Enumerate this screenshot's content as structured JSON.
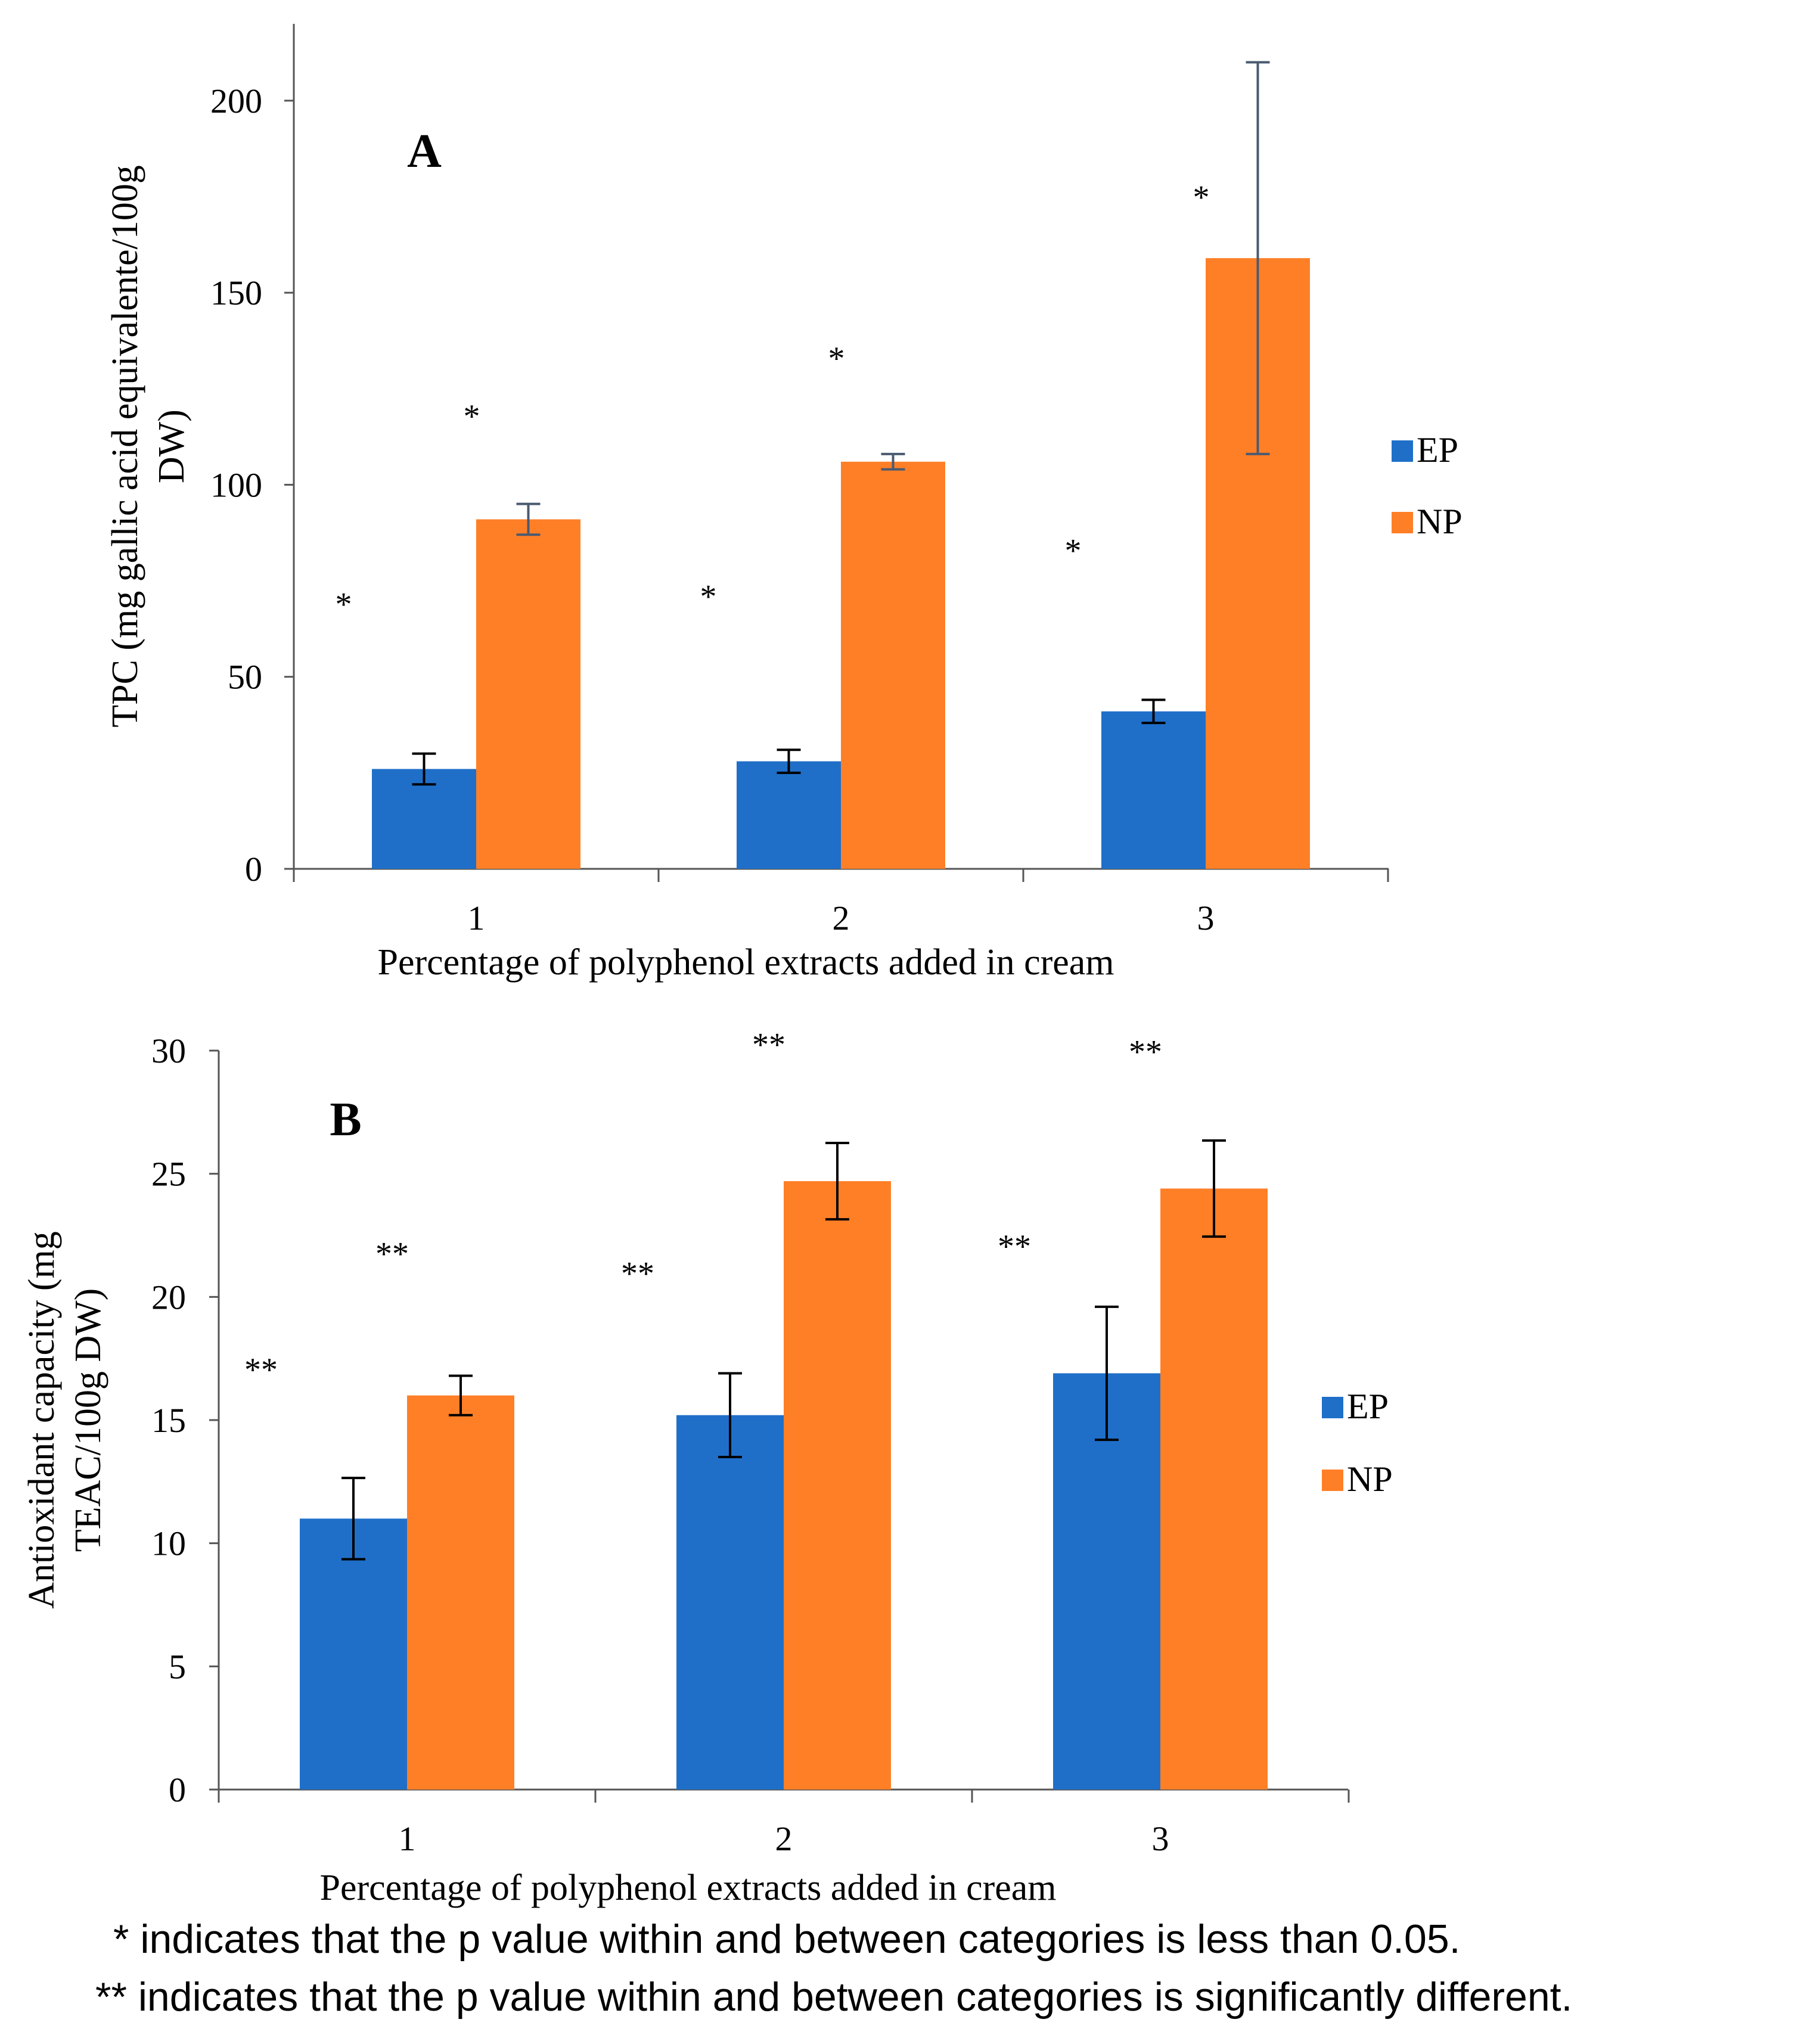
{
  "chart_data": [
    {
      "id": "A",
      "type": "bar",
      "panel_label": "A",
      "title": "",
      "ylabel_lines": [
        "TPC (mg gallic acid equivalente/100g",
        "DW)"
      ],
      "xlabel": "Percentage of polyphenol extracts added in cream",
      "categories": [
        "1",
        "2",
        "3"
      ],
      "ylim": [
        0,
        220
      ],
      "yticks": [
        0,
        50,
        100,
        150,
        200
      ],
      "legend_position": "right",
      "series": [
        {
          "name": "EP",
          "color": "#1F6FC9",
          "values": [
            26,
            28,
            41
          ],
          "errors": [
            4,
            3,
            3
          ],
          "significance": [
            "*",
            "*",
            "*"
          ],
          "sig_level": [
            66,
            68,
            80
          ]
        },
        {
          "name": "NP",
          "color": "#FF7F27",
          "values": [
            91,
            106,
            159
          ],
          "errors": [
            4,
            2,
            51
          ],
          "significance": [
            "*",
            "*",
            "*"
          ],
          "sig_level": [
            115,
            130,
            172
          ]
        }
      ]
    },
    {
      "id": "B",
      "type": "bar",
      "panel_label": "B",
      "title": "",
      "ylabel_lines": [
        "Antioxidant capacity (mg",
        "TEAC/100g DW)"
      ],
      "xlabel": "Percentage of polyphenol extracts added in cream",
      "categories": [
        "1",
        "2",
        "3"
      ],
      "ylim": [
        0,
        30
      ],
      "yticks": [
        0,
        5,
        10,
        15,
        20,
        25,
        30
      ],
      "legend_position": "right",
      "series": [
        {
          "name": "EP",
          "color": "#1F6FC9",
          "values": [
            11,
            15.2,
            16.9
          ],
          "errors": [
            1.65,
            1.7,
            2.7
          ],
          "significance": [
            "**",
            "**",
            "**"
          ],
          "sig_level": [
            16.6,
            20.5,
            21.6
          ]
        },
        {
          "name": "NP",
          "color": "#FF7F27",
          "values": [
            16,
            24.7,
            24.4
          ],
          "errors": [
            0.8,
            1.55,
            1.95
          ],
          "significance": [
            "**",
            "**",
            "**"
          ],
          "sig_level": [
            21.3,
            29.8,
            29.5
          ]
        }
      ]
    }
  ],
  "footnotes": [
    "* indicates that the p value within and between categories is less than 0.05.",
    "** indicates that the p value within and between categories is significantly different."
  ]
}
